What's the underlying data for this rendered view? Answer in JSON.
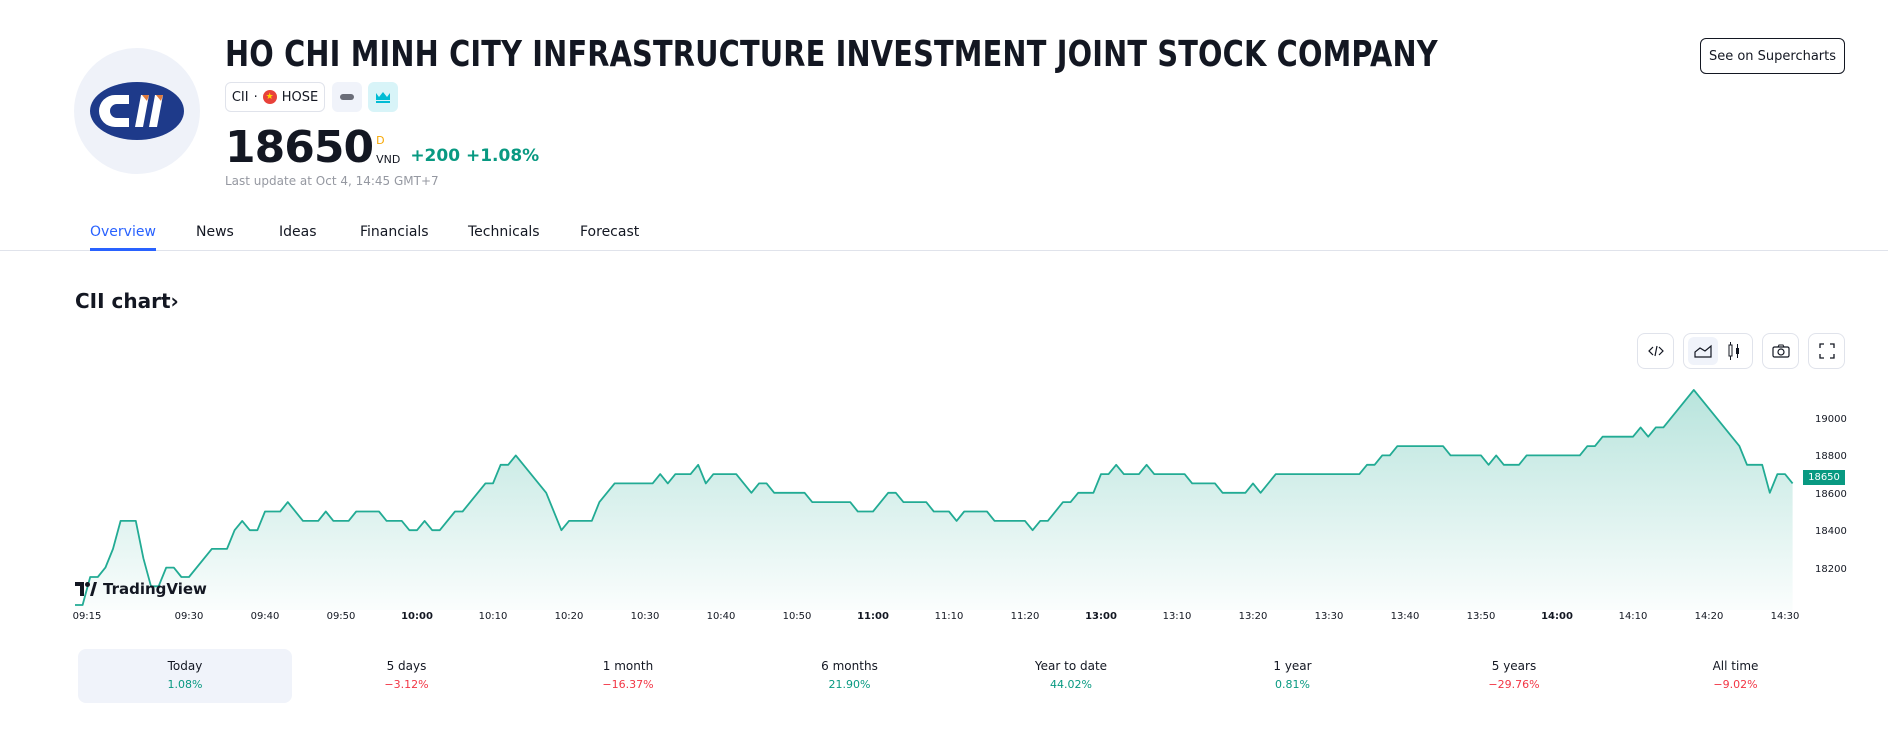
{
  "header": {
    "title": "HO CHI MINH CITY INFRASTRUCTURE INVESTMENT JOINT STOCK COMPANY",
    "logo_text": "CII",
    "symbol": "CII",
    "exchange": "HOSE",
    "separator": "·",
    "price": "18650",
    "price_flag": "D",
    "currency": "VND",
    "change": "+200",
    "change_percent": "+1.08%",
    "last_update": "Last update at Oct 4, 14:45 GMT+7",
    "supercharts_button": "See on Supercharts"
  },
  "tabs": [
    {
      "label": "Overview",
      "active": true
    },
    {
      "label": "News"
    },
    {
      "label": "Ideas"
    },
    {
      "label": "Financials"
    },
    {
      "label": "Technicals"
    },
    {
      "label": "Forecast"
    }
  ],
  "chart_section": {
    "heading": "CII chart",
    "heading_arrow": "›",
    "toolbar": [
      "embed-icon",
      "area-chart-icon",
      "candles-icon",
      "camera-icon",
      "fullscreen-icon"
    ],
    "watermark": "TradingView"
  },
  "chart_data": {
    "type": "area",
    "color": "#22ab94",
    "last_value": "18650",
    "y_ticks": [
      "19000",
      "18800",
      "18600",
      "18400",
      "18200"
    ],
    "ylim": [
      18000,
      19150
    ],
    "x_ticks": [
      {
        "label": "09:15"
      },
      {
        "label": "09:30"
      },
      {
        "label": "09:40"
      },
      {
        "label": "09:50"
      },
      {
        "label": "10:00",
        "bold": true
      },
      {
        "label": "10:10"
      },
      {
        "label": "10:20"
      },
      {
        "label": "10:30"
      },
      {
        "label": "10:40"
      },
      {
        "label": "10:50"
      },
      {
        "label": "11:00",
        "bold": true
      },
      {
        "label": "11:10"
      },
      {
        "label": "11:20"
      },
      {
        "label": "13:00",
        "bold": true
      },
      {
        "label": "13:10"
      },
      {
        "label": "13:20"
      },
      {
        "label": "13:30"
      },
      {
        "label": "13:40"
      },
      {
        "label": "13:50"
      },
      {
        "label": "14:00",
        "bold": true
      },
      {
        "label": "14:10"
      },
      {
        "label": "14:20"
      },
      {
        "label": "14:30"
      }
    ],
    "points": [
      [
        "09:15",
        18000
      ],
      [
        "09:16",
        18000
      ],
      [
        "09:17",
        18150
      ],
      [
        "09:18",
        18150
      ],
      [
        "09:19",
        18200
      ],
      [
        "09:20",
        18300
      ],
      [
        "09:21",
        18450
      ],
      [
        "09:23",
        18450
      ],
      [
        "09:24",
        18250
      ],
      [
        "09:25",
        18100
      ],
      [
        "09:26",
        18100
      ],
      [
        "09:27",
        18200
      ],
      [
        "09:28",
        18200
      ],
      [
        "09:29",
        18150
      ],
      [
        "09:30",
        18150
      ],
      [
        "09:33",
        18300
      ],
      [
        "09:35",
        18300
      ],
      [
        "09:36",
        18400
      ],
      [
        "09:37",
        18450
      ],
      [
        "09:38",
        18400
      ],
      [
        "09:39",
        18400
      ],
      [
        "09:40",
        18500
      ],
      [
        "09:42",
        18500
      ],
      [
        "09:43",
        18550
      ],
      [
        "09:45",
        18450
      ],
      [
        "09:47",
        18450
      ],
      [
        "09:48",
        18500
      ],
      [
        "09:49",
        18450
      ],
      [
        "09:51",
        18450
      ],
      [
        "09:52",
        18500
      ],
      [
        "09:55",
        18500
      ],
      [
        "09:56",
        18450
      ],
      [
        "09:58",
        18450
      ],
      [
        "09:59",
        18400
      ],
      [
        "10:00",
        18400
      ],
      [
        "10:01",
        18450
      ],
      [
        "10:02",
        18400
      ],
      [
        "10:03",
        18400
      ],
      [
        "10:05",
        18500
      ],
      [
        "10:06",
        18500
      ],
      [
        "10:09",
        18650
      ],
      [
        "10:10",
        18650
      ],
      [
        "10:11",
        18750
      ],
      [
        "10:12",
        18750
      ],
      [
        "10:13",
        18800
      ],
      [
        "10:17",
        18600
      ],
      [
        "10:19",
        18400
      ],
      [
        "10:20",
        18450
      ],
      [
        "10:23",
        18450
      ],
      [
        "10:24",
        18550
      ],
      [
        "10:26",
        18650
      ],
      [
        "10:31",
        18650
      ],
      [
        "10:32",
        18700
      ],
      [
        "10:33",
        18650
      ],
      [
        "10:34",
        18700
      ],
      [
        "10:36",
        18700
      ],
      [
        "10:37",
        18750
      ],
      [
        "10:38",
        18650
      ],
      [
        "10:39",
        18700
      ],
      [
        "10:42",
        18700
      ],
      [
        "10:44",
        18600
      ],
      [
        "10:45",
        18650
      ],
      [
        "10:46",
        18650
      ],
      [
        "10:47",
        18600
      ],
      [
        "10:51",
        18600
      ],
      [
        "10:52",
        18550
      ],
      [
        "10:57",
        18550
      ],
      [
        "10:58",
        18500
      ],
      [
        "11:00",
        18500
      ],
      [
        "11:02",
        18600
      ],
      [
        "11:03",
        18600
      ],
      [
        "11:04",
        18550
      ],
      [
        "11:07",
        18550
      ],
      [
        "11:08",
        18500
      ],
      [
        "11:10",
        18500
      ],
      [
        "11:11",
        18450
      ],
      [
        "11:12",
        18500
      ],
      [
        "11:15",
        18500
      ],
      [
        "11:16",
        18450
      ],
      [
        "11:20",
        18450
      ],
      [
        "11:21",
        18400
      ],
      [
        "11:22",
        18450
      ],
      [
        "11:23",
        18450
      ],
      [
        "11:25",
        18550
      ],
      [
        "11:26",
        18550
      ],
      [
        "11:27",
        18600
      ],
      [
        "11:29",
        18600
      ],
      [
        "13:00",
        18700
      ],
      [
        "13:01",
        18700
      ],
      [
        "13:02",
        18750
      ],
      [
        "13:03",
        18700
      ],
      [
        "13:05",
        18700
      ],
      [
        "13:06",
        18750
      ],
      [
        "13:07",
        18700
      ],
      [
        "13:11",
        18700
      ],
      [
        "13:12",
        18650
      ],
      [
        "13:15",
        18650
      ],
      [
        "13:16",
        18600
      ],
      [
        "13:19",
        18600
      ],
      [
        "13:20",
        18650
      ],
      [
        "13:21",
        18600
      ],
      [
        "13:23",
        18700
      ],
      [
        "13:34",
        18700
      ],
      [
        "13:35",
        18750
      ],
      [
        "13:36",
        18750
      ],
      [
        "13:37",
        18800
      ],
      [
        "13:38",
        18800
      ],
      [
        "13:39",
        18850
      ],
      [
        "13:45",
        18850
      ],
      [
        "13:46",
        18800
      ],
      [
        "13:50",
        18800
      ],
      [
        "13:51",
        18750
      ],
      [
        "13:52",
        18800
      ],
      [
        "13:53",
        18750
      ],
      [
        "13:55",
        18750
      ],
      [
        "13:56",
        18800
      ],
      [
        "14:03",
        18800
      ],
      [
        "14:04",
        18850
      ],
      [
        "14:05",
        18850
      ],
      [
        "14:06",
        18900
      ],
      [
        "14:10",
        18900
      ],
      [
        "14:11",
        18950
      ],
      [
        "14:12",
        18900
      ],
      [
        "14:13",
        18950
      ],
      [
        "14:14",
        18950
      ],
      [
        "14:18",
        19150
      ],
      [
        "14:24",
        18850
      ],
      [
        "14:25",
        18750
      ],
      [
        "14:27",
        18750
      ],
      [
        "14:28",
        18600
      ],
      [
        "14:29",
        18700
      ],
      [
        "14:30",
        18700
      ],
      [
        "14:31",
        18650
      ]
    ]
  },
  "periods": [
    {
      "label": "Today",
      "value": "1.08%",
      "positive": true,
      "active": true
    },
    {
      "label": "5 days",
      "value": "−3.12%",
      "positive": false
    },
    {
      "label": "1 month",
      "value": "−16.37%",
      "positive": false
    },
    {
      "label": "6 months",
      "value": "21.90%",
      "positive": true
    },
    {
      "label": "Year to date",
      "value": "44.02%",
      "positive": true
    },
    {
      "label": "1 year",
      "value": "0.81%",
      "positive": true
    },
    {
      "label": "5 years",
      "value": "−29.76%",
      "positive": false
    },
    {
      "label": "All time",
      "value": "−9.02%",
      "positive": false
    }
  ],
  "colors": {
    "positive": "#089981",
    "negative": "#f23645",
    "accent": "#2962ff",
    "logo_blue": "#1e3a8a"
  }
}
